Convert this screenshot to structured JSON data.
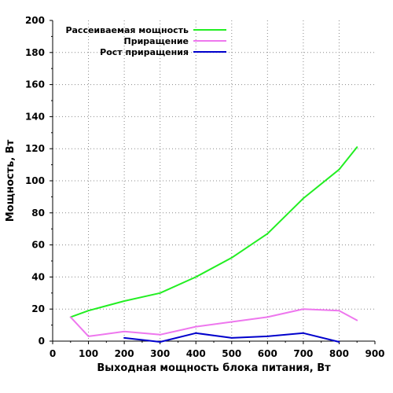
{
  "chart_data": {
    "type": "line",
    "xlabel": "Выходная мощность блока питания, Вт",
    "ylabel": "Мощность, Вт",
    "xlim": [
      0,
      900
    ],
    "ylim": [
      0,
      200
    ],
    "xticks": [
      0,
      100,
      200,
      300,
      400,
      500,
      600,
      700,
      800,
      900
    ],
    "yticks": [
      0,
      20,
      40,
      60,
      80,
      100,
      120,
      140,
      160,
      180,
      200
    ],
    "grid": true,
    "legend_position": "top-left",
    "series": [
      {
        "name": "Рассеиваемая мощность",
        "color": "#22ee22",
        "x": [
          50,
          100,
          200,
          300,
          400,
          500,
          600,
          700,
          800,
          850
        ],
        "y": [
          15,
          19,
          25,
          30,
          40,
          52,
          67,
          89,
          107,
          121
        ]
      },
      {
        "name": "Приращение",
        "color": "#ee77ee",
        "x": [
          50,
          100,
          200,
          300,
          400,
          500,
          600,
          700,
          800,
          850
        ],
        "y": [
          15,
          3,
          6,
          4,
          9,
          12,
          15,
          20,
          19,
          13
        ]
      },
      {
        "name": "Рост приращения",
        "color": "#0000cc",
        "x": [
          200,
          300,
          400,
          500,
          600,
          700,
          800
        ],
        "y": [
          2,
          -0.5,
          5,
          2,
          3,
          5,
          -0.5
        ]
      }
    ]
  }
}
